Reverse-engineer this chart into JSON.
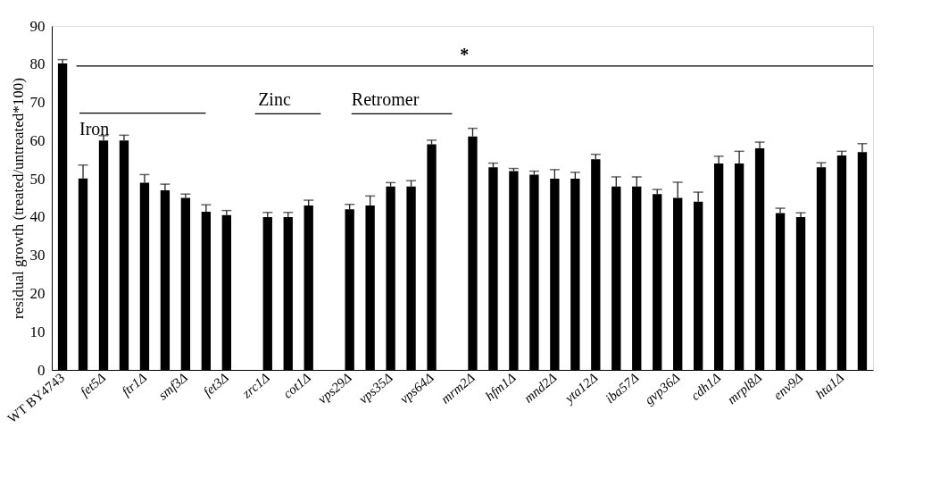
{
  "chart_data": {
    "type": "bar",
    "ylabel": "residual growth (treated/untreated*100)",
    "categories": [
      "WT BY4743",
      null,
      "fet5Δ",
      null,
      "ftr1Δ",
      null,
      "smf3Δ",
      null,
      "fet3Δ",
      null,
      "zrc1Δ",
      null,
      "cot1Δ",
      null,
      "vps29Δ",
      null,
      "vps35Δ",
      null,
      "vps64Δ",
      null,
      "mrm2Δ",
      null,
      "hfm1Δ",
      null,
      "mnd2Δ",
      null,
      "yta12Δ",
      null,
      "iba57Δ",
      null,
      "gvp36Δ",
      null,
      "cdh1Δ",
      null,
      "mrpl8Δ",
      null,
      "env9Δ",
      null,
      "hta1Δ",
      null
    ],
    "values": [
      80.2,
      50.1,
      60,
      60,
      49,
      47,
      45,
      41.4,
      40.5,
      null,
      40,
      40,
      43,
      null,
      42,
      43,
      48,
      48,
      59,
      null,
      61.1,
      53,
      52,
      51.1,
      50,
      50,
      55.1,
      48,
      48,
      46,
      45,
      44,
      54,
      54,
      58,
      41,
      40,
      53,
      56.1,
      57
    ],
    "errors": [
      [
        80.2,
        81.2
      ],
      [
        50.1,
        53.6
      ],
      [
        60,
        61.3
      ],
      [
        60,
        61.4
      ],
      [
        49,
        51.1
      ],
      [
        47,
        48.6
      ],
      [
        45,
        46
      ],
      [
        41.4,
        43.2
      ],
      [
        40.5,
        41.7
      ],
      null,
      [
        40,
        41.2
      ],
      [
        40,
        41.2
      ],
      [
        43,
        44.4
      ],
      null,
      [
        42,
        43.3
      ],
      [
        43,
        45.5
      ],
      [
        48,
        49
      ],
      [
        48,
        49.5
      ],
      [
        59,
        60.1
      ],
      null,
      [
        61.1,
        63.2
      ],
      [
        53,
        54.1
      ],
      [
        52,
        52.7
      ],
      [
        51.1,
        52
      ],
      [
        50,
        52.4
      ],
      [
        50,
        51.7
      ],
      [
        55.1,
        56.4
      ],
      [
        48,
        50.5
      ],
      [
        48,
        50.5
      ],
      [
        46,
        47.2
      ],
      [
        45,
        49.1
      ],
      [
        44,
        46.5
      ],
      [
        54,
        55.9
      ],
      [
        54,
        57.2
      ],
      [
        58,
        59.6
      ],
      [
        41,
        42.3
      ],
      [
        40,
        41.1
      ],
      [
        53,
        54.2
      ],
      [
        56.1,
        57.2
      ],
      [
        57,
        59.2
      ]
    ],
    "color": "#000000",
    "ylim": [
      0,
      90
    ],
    "yticks": [
      0,
      10,
      20,
      30,
      40,
      50,
      60,
      70,
      80,
      90
    ],
    "grid": false,
    "ref_lines": [
      {
        "axis": "y",
        "value": 79.5,
        "label": "*",
        "color": "#000000"
      }
    ],
    "annotations": [
      "Iron",
      "Zinc",
      "Retromer"
    ]
  }
}
